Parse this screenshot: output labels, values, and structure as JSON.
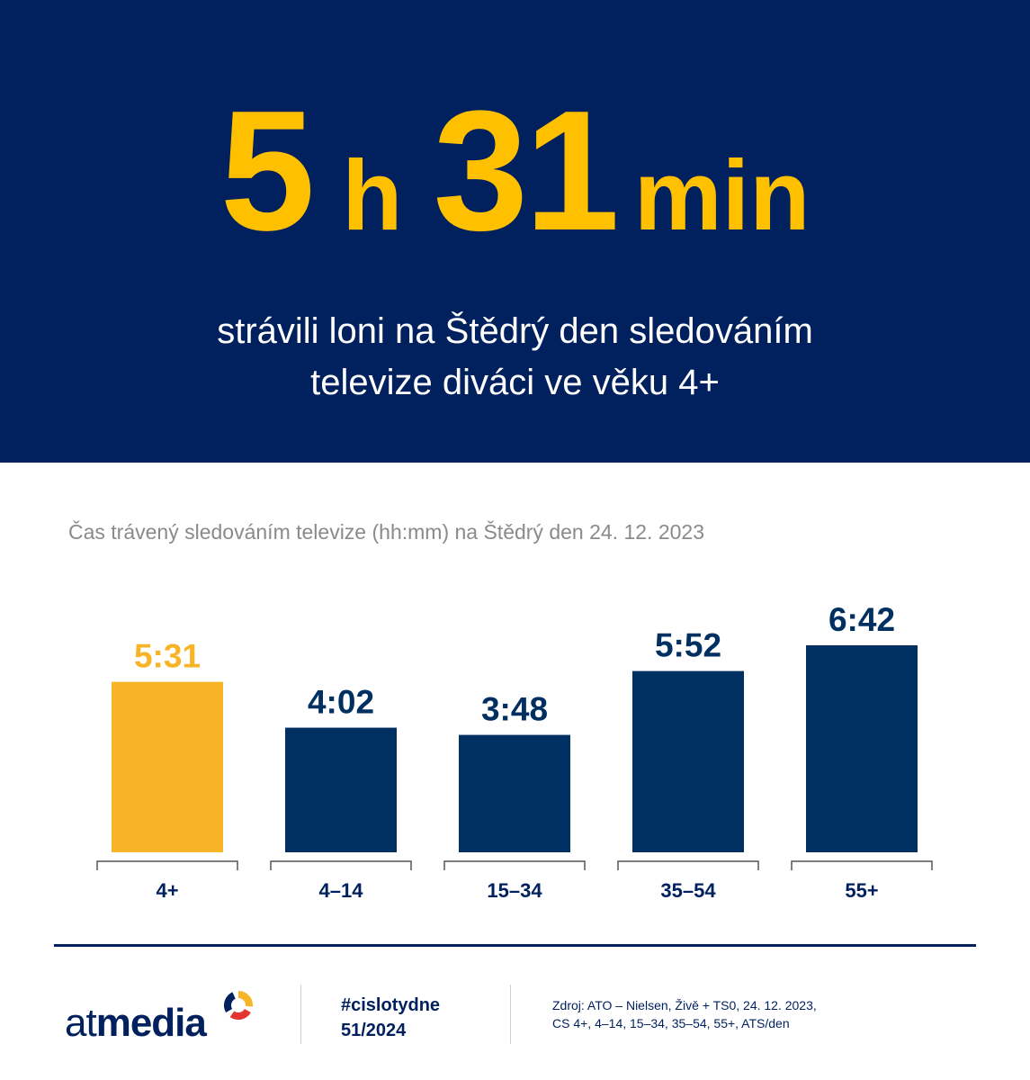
{
  "hero": {
    "number_hours": "5",
    "unit_hours": "h",
    "number_minutes": "31",
    "unit_minutes": "min",
    "subtitle_line1": "strávili loni na Štědrý den sledováním",
    "subtitle_line2": "televize diváci ve věku 4+"
  },
  "colors": {
    "navy": "#00205e",
    "bar_navy": "#002f62",
    "accent": "#f7b426",
    "headline_yellow": "#ffc000",
    "logo_ring": [
      "#f7b426",
      "#e3342f",
      "#00205e"
    ]
  },
  "chart_data": {
    "type": "bar",
    "title": "Čas trávený sledováním televize (hh:mm) na Štědrý den 24. 12. 2023",
    "categories": [
      "4+",
      "4–14",
      "15–34",
      "35–54",
      "55+"
    ],
    "values": [
      331,
      242,
      228,
      352,
      402
    ],
    "value_labels": [
      "5:31",
      "4:02",
      "3:48",
      "5:52",
      "6:42"
    ],
    "unit": "minutes",
    "highlight_index": 0,
    "ylim": [
      0,
      402
    ],
    "grid": false,
    "legend": "none"
  },
  "footer": {
    "logo_text_light": "at",
    "logo_text_bold": "media",
    "hashtag": "#cislotydne",
    "week": "51/2024",
    "source_line1": "Zdroj: ATO – Nielsen, Živě + TS0, 24. 12. 2023,",
    "source_line2": "CS 4+, 4–14, 15–34, 35–54, 55+, ATS/den"
  }
}
